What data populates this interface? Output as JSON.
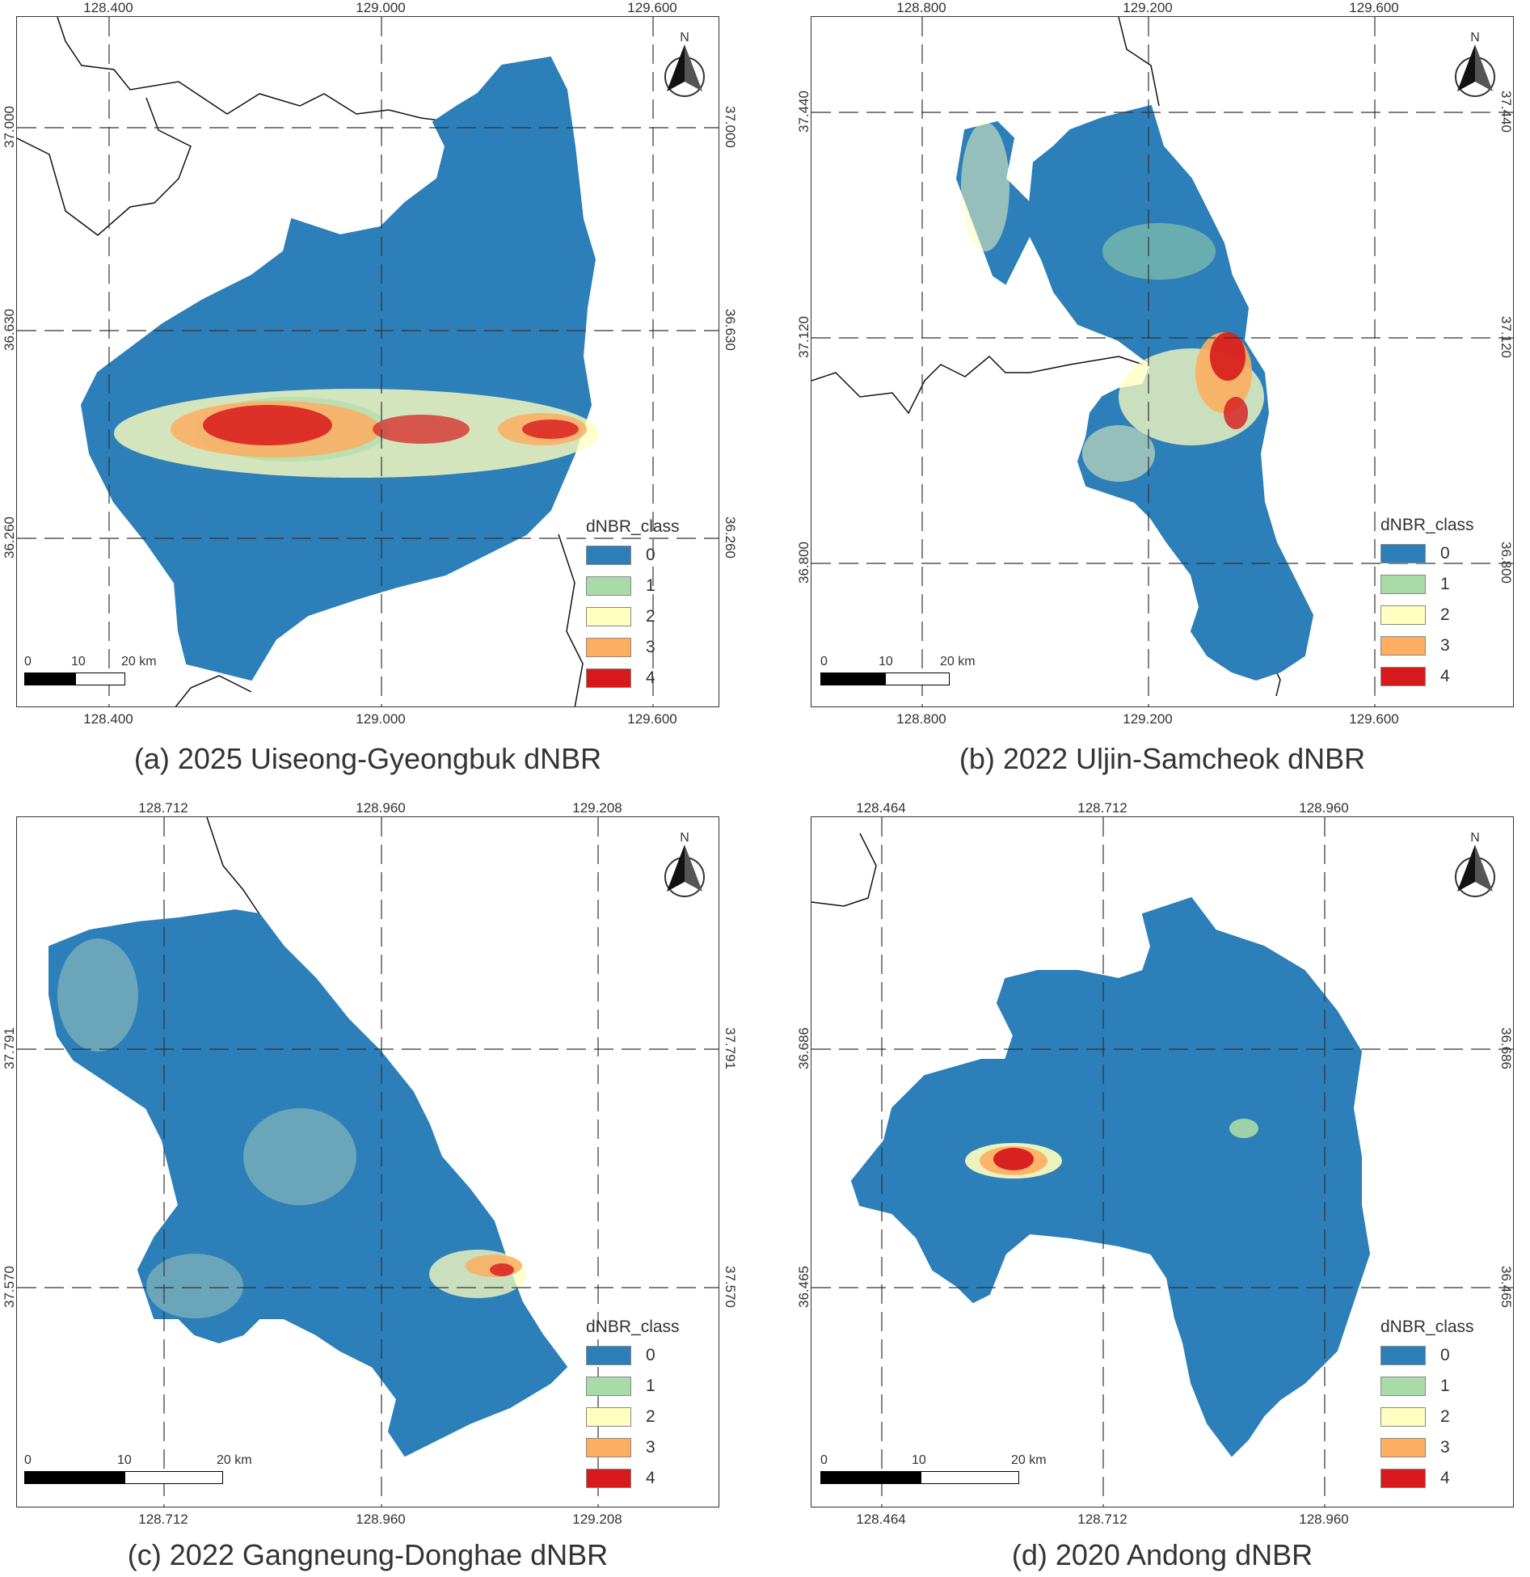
{
  "legend": {
    "title": "dNBR_class",
    "classes": [
      {
        "label": "0",
        "color": "#2c7fb8"
      },
      {
        "label": "1",
        "color": "#a8dba8"
      },
      {
        "label": "2",
        "color": "#ffffbf"
      },
      {
        "label": "3",
        "color": "#fdae61"
      },
      {
        "label": "4",
        "color": "#d7191c"
      }
    ]
  },
  "north_label": "N",
  "scale": {
    "l0": "0",
    "l1": "10",
    "l2": "20 km"
  },
  "panels": [
    {
      "caption": "(a) 2025 Uiseong-Gyeongbuk dNBR",
      "x_ticks": [
        "128.400",
        "129.000",
        "129.600"
      ],
      "y_ticks": [
        "37.000",
        "36.630",
        "36.260"
      ]
    },
    {
      "caption": "(b) 2022 Uljin-Samcheok dNBR",
      "x_ticks": [
        "128.800",
        "129.200",
        "129.600"
      ],
      "y_ticks": [
        "37.440",
        "37.120",
        "36.800"
      ]
    },
    {
      "caption": "(c) 2022 Gangneung-Donghae dNBR",
      "x_ticks": [
        "128.712",
        "128.960",
        "129.208"
      ],
      "y_ticks": [
        "37.791",
        "37.570"
      ]
    },
    {
      "caption": "(d) 2020 Andong dNBR",
      "x_ticks": [
        "128.464",
        "128.712",
        "128.960"
      ],
      "y_ticks": [
        "36.686",
        "36.465"
      ]
    }
  ]
}
